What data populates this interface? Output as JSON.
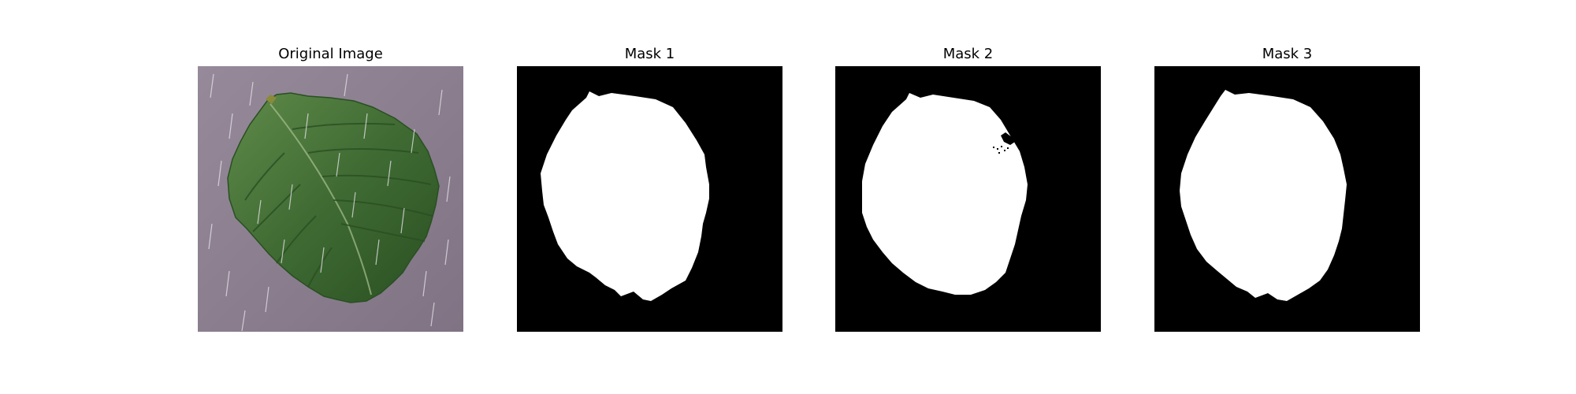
{
  "figure": {
    "panels": [
      {
        "title": "Original Image",
        "kind": "photo"
      },
      {
        "title": "Mask 1",
        "kind": "mask"
      },
      {
        "title": "Mask 2",
        "kind": "mask"
      },
      {
        "title": "Mask 3",
        "kind": "mask"
      }
    ]
  },
  "colors": {
    "background": "#ffffff",
    "mask_background": "#000000",
    "mask_foreground": "#ffffff",
    "photo_background": "#8d7f8f",
    "leaf": "#3f6b33",
    "leaf_dark": "#2a4f22",
    "leaf_light": "#5f8a4a"
  }
}
